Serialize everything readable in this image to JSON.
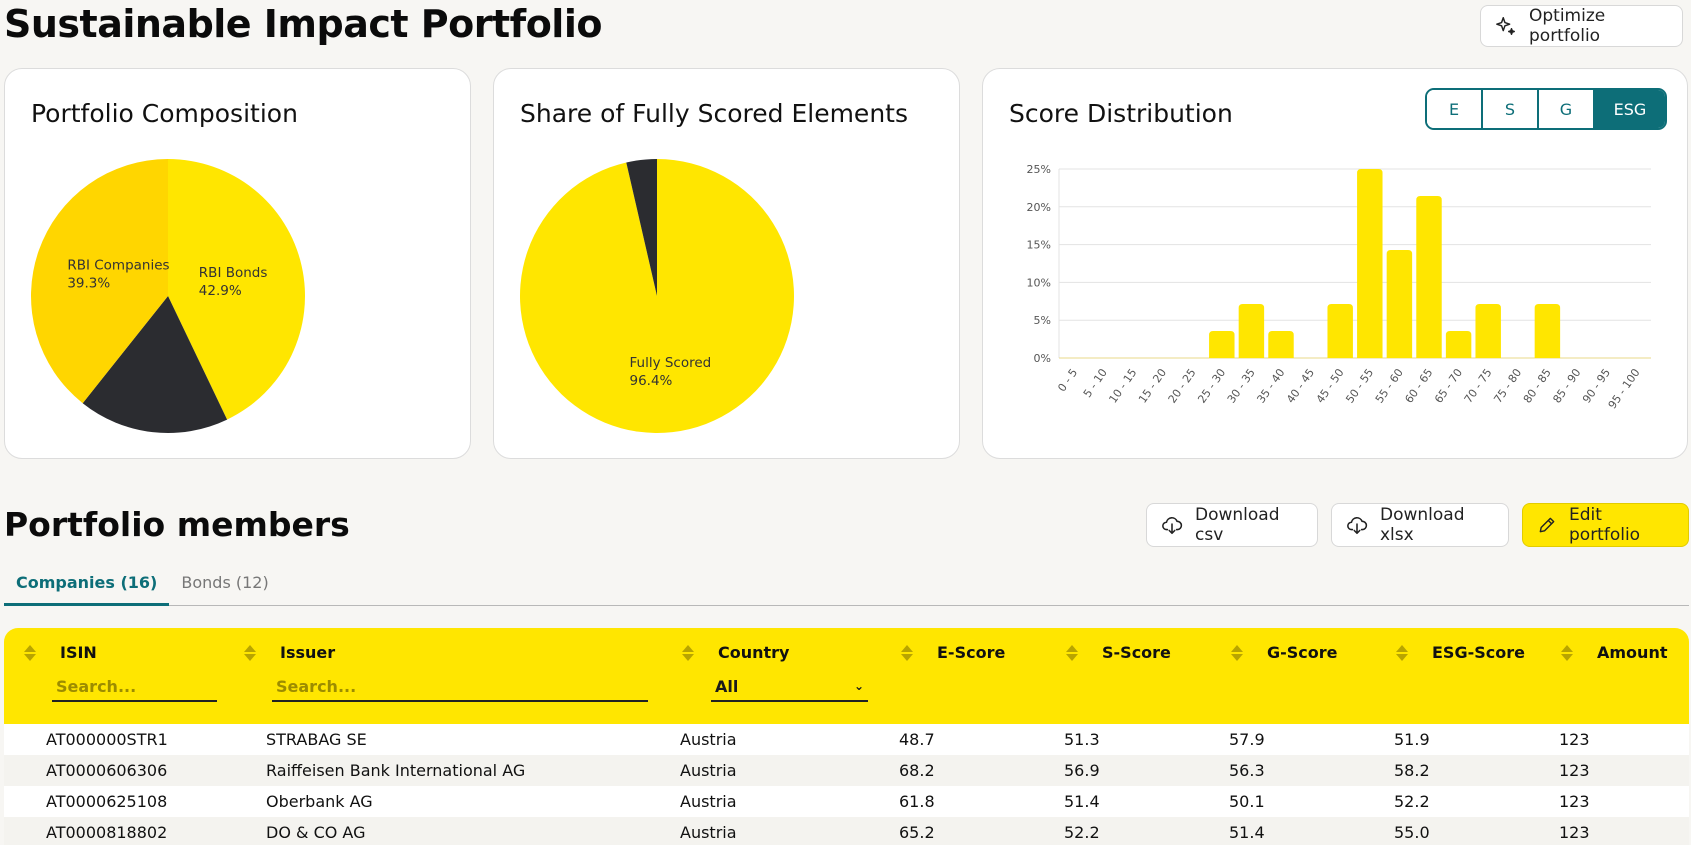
{
  "header": {
    "title": "Sustainable Impact Portfolio",
    "optimize_label": "Optimize portfolio",
    "optimize_icon": "sparkles-icon"
  },
  "colors": {
    "brand_yellow": "#ffe600",
    "companies_yellow": "#ffd600",
    "dark": "#2b2c30",
    "accent_teal": "#0d6e78"
  },
  "composition": {
    "title": "Portfolio Composition",
    "chart_data": {
      "type": "pie",
      "title": "Portfolio Composition",
      "slices": [
        {
          "label": "RBI Bonds",
          "value": 42.9,
          "display": "42.9%",
          "color": "#ffe600",
          "show_label": true
        },
        {
          "label": "",
          "value": 17.8,
          "display": "",
          "color": "#2b2c30",
          "show_label": false
        },
        {
          "label": "RBI Companies",
          "value": 39.3,
          "display": "39.3%",
          "color": "#ffd600",
          "show_label": true
        }
      ]
    }
  },
  "fully_scored": {
    "title": "Share of Fully Scored Elements",
    "chart_data": {
      "type": "pie",
      "title": "Share of Fully Scored Elements",
      "slices": [
        {
          "label": "Fully Scored",
          "value": 96.4,
          "display": "96.4%",
          "color": "#ffe600",
          "show_label": true
        },
        {
          "label": "",
          "value": 3.6,
          "display": "",
          "color": "#2b2c30",
          "show_label": false
        }
      ]
    }
  },
  "distribution": {
    "title": "Score Distribution",
    "toggle": [
      {
        "label": "E",
        "active": false
      },
      {
        "label": "S",
        "active": false
      },
      {
        "label": "G",
        "active": false
      },
      {
        "label": "ESG",
        "active": true
      }
    ],
    "chart_data": {
      "type": "bar",
      "title": "Score Distribution",
      "xlabel": "",
      "ylabel": "",
      "ylim": [
        0,
        25
      ],
      "yticks": [
        "0%",
        "5%",
        "10%",
        "15%",
        "20%",
        "25%"
      ],
      "grid": true,
      "categories": [
        "0 - 5",
        "5 - 10",
        "10 - 15",
        "15 - 20",
        "20 - 25",
        "25 - 30",
        "30 - 35",
        "35 - 40",
        "40 - 45",
        "45 - 50",
        "50 - 55",
        "55 - 60",
        "60 - 65",
        "65 - 70",
        "70 - 75",
        "75 - 80",
        "80 - 85",
        "85 - 90",
        "90 - 95",
        "95 - 100"
      ],
      "values": [
        0,
        0,
        0,
        0,
        0,
        3.57,
        7.14,
        3.57,
        0,
        7.14,
        25.0,
        14.29,
        21.43,
        3.57,
        7.14,
        0,
        7.14,
        0,
        0,
        0
      ]
    }
  },
  "members": {
    "title": "Portfolio members",
    "download_csv": "Download csv",
    "download_xlsx": "Download xlsx",
    "edit_label": "Edit portfolio",
    "tabs": [
      {
        "label": "Companies (16)",
        "active": true
      },
      {
        "label": "Bonds (12)",
        "active": false
      }
    ],
    "columns": [
      "ISIN",
      "Issuer",
      "Country",
      "E-Score",
      "S-Score",
      "G-Score",
      "ESG-Score",
      "Amount"
    ],
    "isin_placeholder": "Search...",
    "issuer_placeholder": "Search...",
    "country_filter": "All",
    "rows": [
      [
        "AT000000STR1",
        "STRABAG SE",
        "Austria",
        "48.7",
        "51.3",
        "57.9",
        "51.9",
        "123"
      ],
      [
        "AT0000606306",
        "Raiffeisen Bank International AG",
        "Austria",
        "68.2",
        "56.9",
        "56.3",
        "58.2",
        "123"
      ],
      [
        "AT0000625108",
        "Oberbank AG",
        "Austria",
        "61.8",
        "51.4",
        "50.1",
        "52.2",
        "123"
      ],
      [
        "AT0000818802",
        "DO & CO AG",
        "Austria",
        "65.2",
        "52.2",
        "51.4",
        "55.0",
        "123"
      ]
    ]
  }
}
